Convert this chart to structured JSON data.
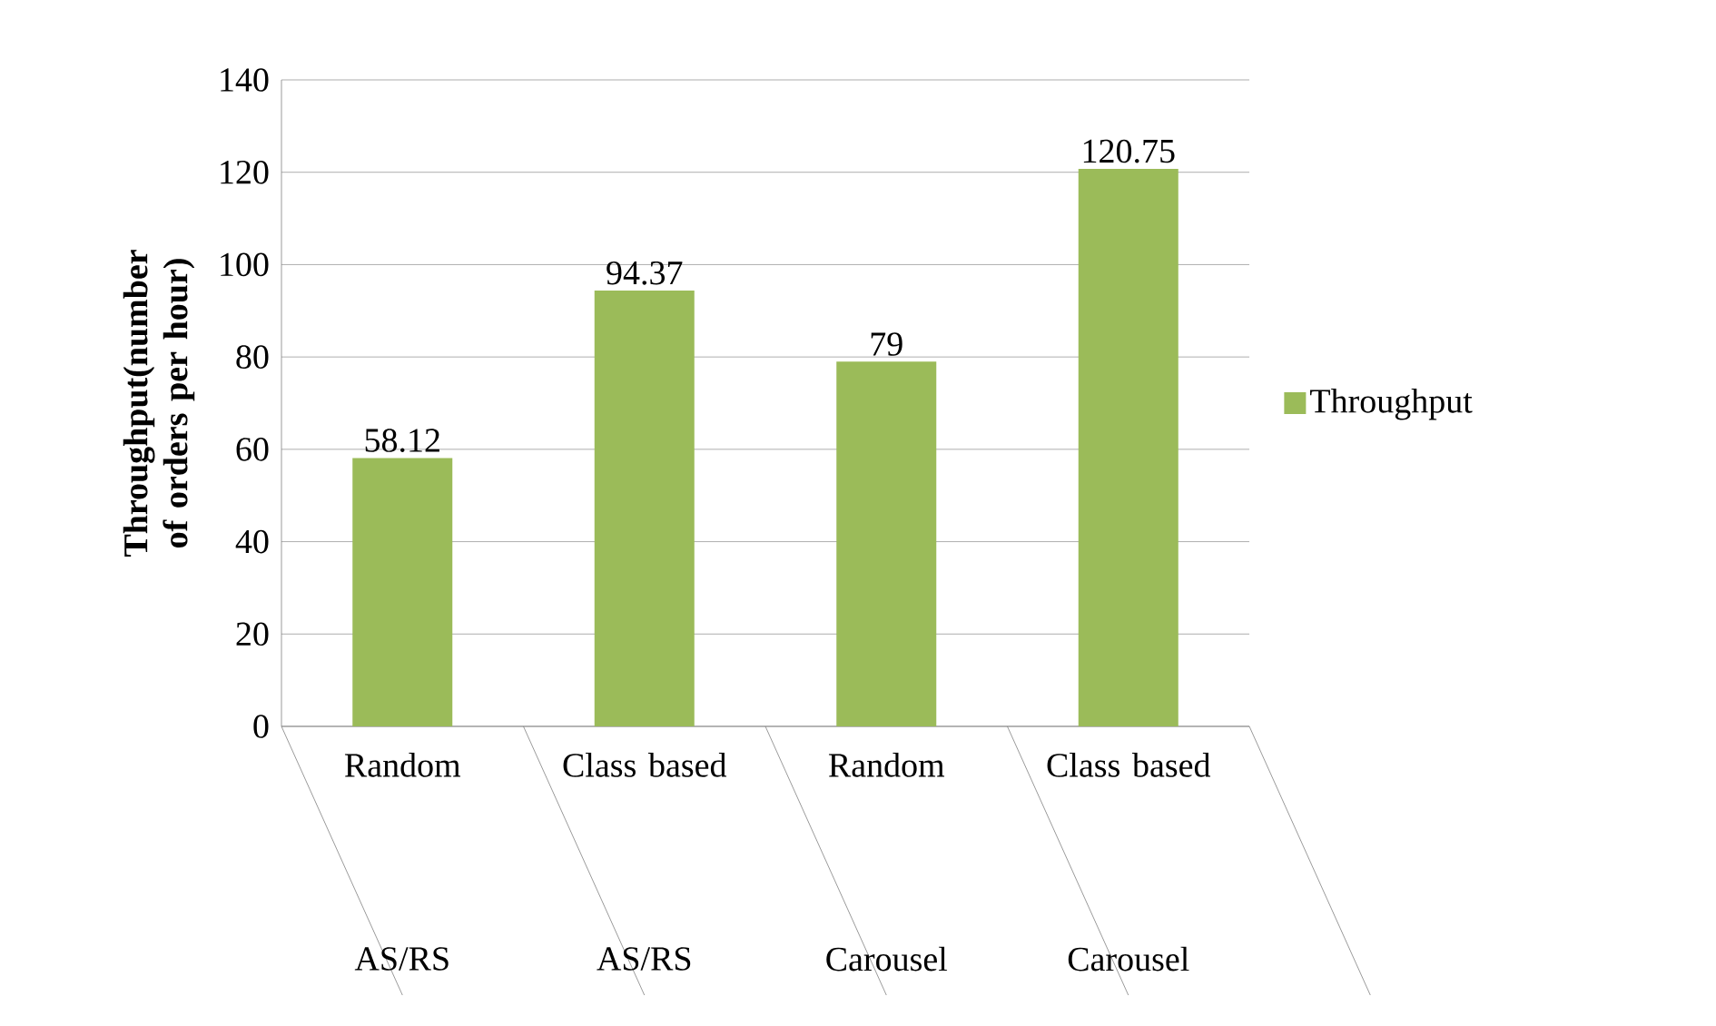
{
  "chart_data": {
    "type": "bar",
    "ylabel": "Throughput(number of orders per hour)",
    "categories": [
      "Random",
      "Class based",
      "Random",
      "Class based"
    ],
    "annotations": [
      "AS/RS",
      "AS/RS",
      "Carousel",
      "Carousel"
    ],
    "series": [
      {
        "name": "Throughput",
        "color": "#9bbb59",
        "values": [
          58.12,
          94.37,
          79,
          120.75
        ]
      }
    ],
    "ylim": [
      0,
      140
    ],
    "yticks": [
      0,
      20,
      40,
      60,
      80,
      100,
      120,
      140
    ],
    "grid": "y",
    "legend": "right",
    "data_labels": true
  }
}
